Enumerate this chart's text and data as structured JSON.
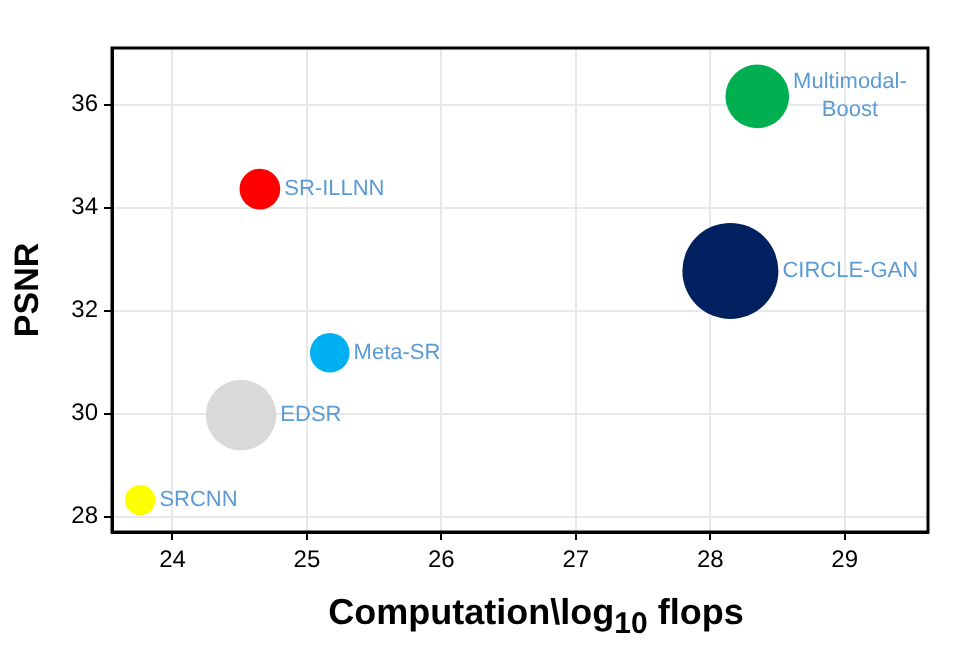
{
  "chart_data": {
    "type": "bubble",
    "xlabel": "Computation\\log$_{10}$ flops",
    "ylabel": "PSNR",
    "xlim": [
      23.55,
      29.62
    ],
    "xticks": [
      24,
      25,
      26,
      27,
      28,
      29
    ],
    "ylim": [
      27.7,
      37.1
    ],
    "yticks": [
      28,
      30,
      32,
      34,
      36
    ],
    "grid": true,
    "legend": false,
    "series": [
      {
        "name": "SRCNN",
        "color": "#ffff00",
        "x": [
          23.76
        ],
        "values": [
          28.32
        ],
        "sizes": [
          0.1
        ]
      },
      {
        "name": "EDSR",
        "color": "#d9d9d9",
        "x": [
          24.51
        ],
        "values": [
          29.97
        ],
        "sizes": [
          0.54
        ]
      },
      {
        "name": "Meta-SR",
        "color": "#00b0f0",
        "x": [
          25.17
        ],
        "values": [
          31.18
        ],
        "sizes": [
          0.17
        ]
      },
      {
        "name": "SR-ILLNN",
        "color": "#ff0000",
        "x": [
          24.65
        ],
        "values": [
          34.36
        ],
        "sizes": [
          0.18
        ]
      },
      {
        "name": "CIRCLE-GAN",
        "color": "#002060",
        "x": [
          28.15
        ],
        "values": [
          32.77
        ],
        "sizes": [
          1
        ]
      },
      {
        "name": "Multimodal-Boost",
        "color": "#00b050",
        "x": [
          28.35
        ],
        "values": [
          36.16
        ],
        "sizes": [
          0.44
        ]
      }
    ]
  }
}
